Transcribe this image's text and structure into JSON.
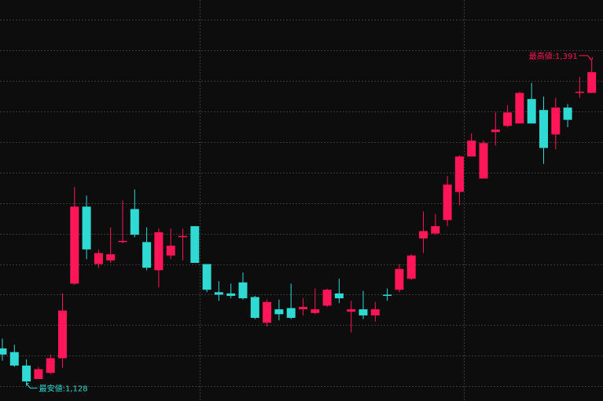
{
  "chart_data": {
    "type": "candlestick",
    "open": [
      1156,
      1153,
      1142,
      1131,
      1136,
      1148,
      1209,
      1272,
      1225,
      1228,
      1243,
      1270,
      1243,
      1220,
      1232,
      1247,
      1256,
      1225,
      1202,
      1201,
      1210,
      1198,
      1177,
      1188,
      1189,
      1188,
      1185,
      1191,
      1201,
      1186,
      1188,
      1183,
      1200,
      1204,
      1213,
      1246,
      1250,
      1261,
      1284,
      1313,
      1295,
      1333,
      1338,
      1340,
      1360,
      1351,
      1331,
      1353,
      1365,
      1365
    ],
    "high": [
      1164,
      1159,
      1147,
      1141,
      1151,
      1201,
      1288,
      1281,
      1237,
      1255,
      1277,
      1286,
      1255,
      1254,
      1254,
      1254,
      1256,
      1225,
      1211,
      1209,
      1218,
      1199,
      1196,
      1196,
      1209,
      1197,
      1205,
      1205,
      1213,
      1195,
      1203,
      1194,
      1205,
      1225,
      1233,
      1268,
      1266,
      1297,
      1314,
      1332,
      1326,
      1349,
      1355,
      1366,
      1373,
      1362,
      1361,
      1356,
      1378,
      1391
    ],
    "low": [
      1146,
      1141,
      1128,
      1131,
      1135,
      1140,
      1208,
      1229,
      1222,
      1226,
      1242,
      1247,
      1220,
      1206,
      1229,
      1228,
      1226,
      1202,
      1195,
      1197,
      1196,
      1180,
      1174,
      1179,
      1180,
      1183,
      1184,
      1190,
      1193,
      1169,
      1180,
      1178,
      1195,
      1202,
      1212,
      1234,
      1249,
      1256,
      1273,
      1313,
      1295,
      1322,
      1337,
      1340,
      1340,
      1307,
      1319,
      1337,
      1361,
      1365
    ],
    "close": [
      1151,
      1142,
      1129,
      1139,
      1148,
      1187,
      1272,
      1237,
      1234,
      1233,
      1244,
      1249,
      1222,
      1251,
      1240,
      1248,
      1226,
      1204,
      1200,
      1199,
      1197,
      1181,
      1194,
      1184,
      1181,
      1190,
      1188,
      1204,
      1197,
      1188,
      1183,
      1188,
      1199,
      1221,
      1232,
      1252,
      1256,
      1290,
      1313,
      1326,
      1324,
      1335,
      1349,
      1365,
      1340,
      1320,
      1353,
      1343,
      1366,
      1382
    ],
    "up_color": "#ff1659",
    "down_color": "#2fd9d4",
    "ylim": [
      1113,
      1441
    ],
    "yticks": [
      1125,
      1150,
      1175,
      1200,
      1225,
      1250,
      1275,
      1300,
      1325,
      1350,
      1375,
      1400,
      1425
    ],
    "grid": true,
    "annotations": [
      {
        "text": "最高値:1,391",
        "value": 1391,
        "color": "#ff1659"
      },
      {
        "text": "最安値:1,128",
        "value": 1128,
        "color": "#2fd9d4"
      }
    ]
  }
}
